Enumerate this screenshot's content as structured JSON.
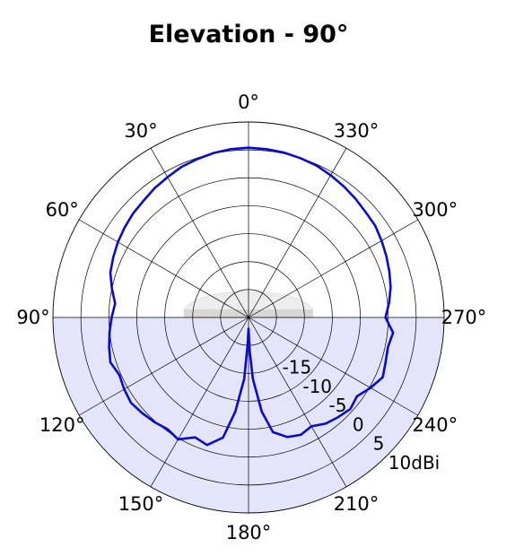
{
  "chart_data": {
    "type": "polar-line",
    "title": "Elevation - 90°",
    "angle_direction": "counterclockwise",
    "zero_at": "top",
    "angle_ticks": [
      {
        "deg": 0,
        "label": "0°"
      },
      {
        "deg": 30,
        "label": "30°"
      },
      {
        "deg": 60,
        "label": "60°"
      },
      {
        "deg": 90,
        "label": "90°"
      },
      {
        "deg": 120,
        "label": "120°"
      },
      {
        "deg": 150,
        "label": "150°"
      },
      {
        "deg": 180,
        "label": "180°"
      },
      {
        "deg": 210,
        "label": "210°"
      },
      {
        "deg": 240,
        "label": "240°"
      },
      {
        "deg": 270,
        "label": "270°"
      },
      {
        "deg": 300,
        "label": "300°"
      },
      {
        "deg": 330,
        "label": "330°"
      }
    ],
    "radial_range_dbi": [
      -25,
      10
    ],
    "radial_ticks": [
      {
        "value": -15,
        "label": "-15"
      },
      {
        "value": -10,
        "label": "-10"
      },
      {
        "value": -5,
        "label": "-5"
      },
      {
        "value": 0,
        "label": "0"
      },
      {
        "value": 5,
        "label": "5"
      },
      {
        "value": 10,
        "label": "10dBi"
      }
    ],
    "shaded_region_deg": [
      90,
      270
    ],
    "colors": {
      "trace": "#0a0acc",
      "shade": "#e4e4fb",
      "grid": "#000000",
      "device": "#d8d8d8"
    },
    "device_icon": "antenna-device-icon",
    "series": [
      {
        "angles": [
          0,
          6,
          12,
          18,
          24,
          30,
          36,
          42,
          48,
          54,
          60,
          66,
          72,
          78,
          84,
          90,
          96,
          102,
          108,
          114,
          120,
          126,
          132,
          138,
          144,
          150,
          156,
          162,
          168,
          172,
          176,
          178,
          180,
          182,
          184,
          188,
          192,
          198,
          204,
          210,
          216,
          222,
          228,
          234,
          240,
          246,
          252,
          258,
          264,
          270,
          276,
          282,
          288,
          294,
          300,
          306,
          312,
          318,
          324,
          330,
          336,
          342,
          348,
          354,
          360
        ],
        "gain_dbi": [
          5.4,
          5.3,
          5.1,
          4.8,
          4.5,
          4.0,
          3.6,
          3.1,
          2.8,
          2.4,
          2.0,
          1.5,
          1.0,
          0.0,
          -1.0,
          -0.5,
          0.0,
          0.5,
          1.0,
          0.3,
          0.7,
          1.0,
          0.6,
          0.2,
          -0.3,
          0.2,
          -1.5,
          -1.0,
          -3.0,
          -8.0,
          -14.0,
          -20.0,
          -23.0,
          -19.0,
          -14.0,
          -8.0,
          -4.0,
          -2.5,
          -2.0,
          -2.5,
          -1.5,
          -1.0,
          -0.5,
          -1.0,
          0.2,
          1.3,
          0.8,
          0.5,
          1.0,
          -0.5,
          0.3,
          1.0,
          1.5,
          2.0,
          2.5,
          3.0,
          3.2,
          3.6,
          4.0,
          4.4,
          4.8,
          5.0,
          5.2,
          5.3,
          5.4
        ]
      }
    ]
  }
}
